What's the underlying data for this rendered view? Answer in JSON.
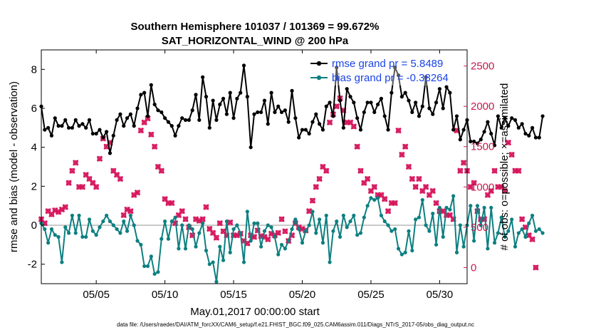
{
  "colors": {
    "rmse": "#000000",
    "bias": "#0e7f80",
    "obs": "#d6155c",
    "legend_text": "#1a44e6",
    "zero_line": "#b9b9b9",
    "right_axis": "#c11a4d"
  },
  "chart_data": {
    "type": "line",
    "title": "Southern Hemisphere 101037 / 101369 = 99.672%",
    "subtitle": "SAT_HORIZONTAL_WIND @ 200 hPa",
    "xlabel": "May.01,2017 00:00:00 start",
    "ylabel_left": "rmse and bias (model - observation)",
    "ylabel_right": "# of obs: o=possible; ×=assimilated",
    "footnote": "data file: /Users/raeder/DAI/ATM_forcXX/CAM6_setup/f.e21.FHIST_BGC.f09_025.CAM6assim.011/Diags_NTrS_2017-05/obs_diag_output.nc",
    "xlim": [
      1,
      32
    ],
    "ylim_left": [
      -3,
      9
    ],
    "ylim_right": [
      -200,
      2700
    ],
    "x_ticks": [
      5,
      10,
      15,
      20,
      25,
      30
    ],
    "x_tick_labels": [
      "05/05",
      "05/10",
      "05/15",
      "05/20",
      "05/25",
      "05/30"
    ],
    "y_ticks_left": [
      "-2",
      "0",
      "2",
      "4",
      "6",
      "8"
    ],
    "y_ticks_right": [
      "0",
      "500",
      "1000",
      "1500",
      "2000",
      "2500"
    ],
    "legend_position": "top-right",
    "legend": [
      "rmse grand pr = 5.8489",
      "bias grand pr = -0.38264"
    ],
    "t0": 1,
    "dt": 0.25,
    "series": [
      {
        "name": "rmse grand pr = 5.8489",
        "axis": "left",
        "values": [
          6.1,
          4.9,
          5.0,
          4.6,
          5.5,
          5.1,
          5.1,
          5.4,
          5.0,
          5.0,
          5.4,
          5.1,
          5.2,
          5.0,
          5.4,
          4.7,
          4.7,
          4.9,
          4.5,
          4.8,
          3.7,
          4.6,
          5.4,
          5.7,
          5.1,
          5.5,
          5.7,
          5.1,
          6.0,
          6.7,
          6.8,
          5.6,
          7.2,
          6.2,
          5.9,
          5.8,
          5.5,
          5.3,
          5.1,
          4.6,
          5.1,
          5.5,
          5.4,
          5.4,
          5.9,
          6.7,
          5.4,
          7.6,
          6.6,
          5.0,
          6.4,
          5.4,
          6.2,
          6.5,
          5.7,
          6.8,
          5.5,
          6.5,
          6.8,
          8.2,
          6.6,
          4.0,
          5.7,
          5.8,
          5.8,
          6.4,
          5.2,
          6.8,
          5.8,
          6.1,
          5.8,
          5.9,
          5.3,
          6.9,
          5.5,
          4.5,
          4.9,
          4.9,
          4.7,
          5.3,
          5.7,
          5.2,
          4.9,
          6.1,
          6.3,
          5.6,
          8.1,
          6.4,
          5.0,
          7.0,
          6.6,
          6.3,
          5.5,
          4.9,
          5.8,
          6.3,
          6.3,
          5.8,
          6.2,
          6.5,
          5.6,
          4.9,
          6.8,
          8.1,
          7.7,
          6.6,
          6.8,
          6.4,
          5.8,
          6.3,
          5.6,
          6.1,
          7.6,
          6.0,
          5.7,
          6.3,
          7.0,
          6.0,
          7.1,
          6.8,
          4.9,
          5.6,
          4.4,
          4.9,
          5.4,
          4.3,
          4.3,
          4.2,
          4.4,
          4.8,
          5.3,
          4.7,
          4.1,
          5.6,
          5.0,
          5.5,
          5.1,
          5.5,
          5.4,
          5.0,
          5.2,
          4.7,
          4.6,
          5.0,
          4.5,
          4.5,
          5.6
        ]
      },
      {
        "name": "bias grand pr = -0.38264",
        "axis": "left",
        "values": [
          0.1,
          -0.2,
          -0.9,
          -0.2,
          -0.5,
          -0.6,
          -1.9,
          -0.1,
          -0.4,
          0.5,
          -0.4,
          0.5,
          -0.6,
          -0.6,
          0.3,
          -0.3,
          -0.5,
          -0.1,
          0.2,
          0.5,
          0.2,
          0.0,
          -0.2,
          -0.4,
          0.2,
          -0.3,
          0.5,
          0.0,
          -0.8,
          -1.0,
          -2.1,
          -2.1,
          -1.6,
          -2.5,
          -2.4,
          -0.7,
          0.2,
          -0.7,
          0.2,
          0.4,
          -1.2,
          0.0,
          -1.2,
          0.0,
          -0.2,
          -1.1,
          -0.4,
          0.1,
          -1.3,
          -2.0,
          -1.9,
          -2.9,
          -1.1,
          -1.8,
          0.2,
          -1.4,
          -0.2,
          0.0,
          -0.4,
          -1.9,
          0.7,
          -0.8,
          0.1,
          0.1,
          -1.1,
          -0.3,
          0.0,
          -0.1,
          -0.6,
          -1.5,
          -1.0,
          -1.2,
          -0.8,
          -0.2,
          0.3,
          -0.2,
          -0.9,
          -0.3,
          0.0,
          0.7,
          -0.4,
          0.3,
          -0.9,
          0.5,
          -1.9,
          -0.3,
          0.2,
          -0.6,
          0.5,
          -0.1,
          0.2,
          0.5,
          -0.5,
          -0.4,
          0.4,
          1.0,
          1.4,
          1.3,
          1.4,
          0.5,
          0.2,
          0.0,
          -0.3,
          -0.2,
          -1.2,
          -1.5,
          -1.4,
          -0.3,
          -1.3,
          0.3,
          0.4,
          1.3,
          0.0,
          -0.3,
          0.6,
          -1.0,
          0.9,
          -0.6,
          0.9,
          0.8,
          1.5,
          -1.4,
          0.0,
          -1.1,
          0.0,
          1.0,
          -0.8,
          1.0,
          0.0,
          0.9,
          -1.2,
          0.9,
          -0.9,
          -0.4,
          0.4,
          -0.6,
          -0.3,
          0.3,
          -1.1,
          -0.4,
          -0.2,
          -0.6,
          0.1,
          0.5,
          -0.3,
          -0.2,
          -0.4
        ]
      },
      {
        "name": "obs_possible",
        "axis": "right",
        "values": [
          600,
          550,
          700,
          660,
          710,
          690,
          720,
          750,
          1050,
          1200,
          1300,
          1000,
          1000,
          1150,
          1100,
          1050,
          1000,
          1350,
          1600,
          1500,
          1550,
          1200,
          1150,
          1100,
          650,
          720,
          700,
          900,
          930,
          1700,
          1800,
          1850,
          1650,
          1500,
          1250,
          1200,
          850,
          800,
          800,
          550,
          650,
          700,
          600,
          500,
          400,
          600,
          580,
          600,
          750,
          480,
          430,
          370,
          550,
          450,
          400,
          560,
          400,
          400,
          420,
          330,
          300,
          400,
          380,
          460,
          390,
          380,
          350,
          420,
          400,
          430,
          600,
          450,
          330,
          400,
          550,
          500,
          480,
          460,
          700,
          830,
          1000,
          1100,
          1250,
          1200,
          1800,
          1900,
          2000,
          2100,
          1950,
          1800,
          1800,
          1750,
          1500,
          1200,
          1050,
          1100,
          950,
          1000,
          900,
          900,
          850,
          700,
          800,
          800,
          1700,
          1400,
          1500,
          1250,
          1100,
          1000,
          1100,
          950,
          1000,
          900,
          950,
          800,
          700,
          700,
          650,
          650,
          600,
          1700,
          1200,
          1300,
          1200,
          1000,
          1050,
          700,
          600,
          600,
          900,
          950,
          1200,
          1000,
          1000,
          950,
          1550,
          1400,
          1200,
          1200,
          600,
          500,
          400,
          350,
          0
        ]
      },
      {
        "name": "obs_assimilated",
        "axis": "right",
        "values": [
          600,
          550,
          700,
          660,
          710,
          690,
          720,
          750,
          1050,
          1200,
          1300,
          1000,
          1000,
          1150,
          1100,
          1050,
          1000,
          1350,
          1600,
          1500,
          1550,
          1200,
          1150,
          1100,
          650,
          720,
          700,
          900,
          930,
          1700,
          1800,
          1850,
          1650,
          1500,
          1250,
          1200,
          850,
          800,
          800,
          550,
          650,
          700,
          600,
          500,
          400,
          600,
          580,
          600,
          750,
          480,
          430,
          370,
          550,
          450,
          400,
          560,
          400,
          400,
          420,
          330,
          300,
          400,
          380,
          460,
          390,
          380,
          350,
          420,
          400,
          430,
          600,
          450,
          330,
          400,
          550,
          500,
          480,
          460,
          700,
          830,
          1000,
          1100,
          1250,
          1200,
          1800,
          1900,
          2000,
          2100,
          1950,
          1800,
          1800,
          1750,
          1500,
          1200,
          1050,
          1100,
          950,
          1000,
          900,
          900,
          850,
          700,
          800,
          800,
          1700,
          1400,
          1500,
          1250,
          1100,
          1000,
          1100,
          950,
          1000,
          900,
          950,
          800,
          700,
          700,
          650,
          650,
          600,
          1700,
          1200,
          1300,
          1200,
          1000,
          1050,
          700,
          600,
          600,
          900,
          950,
          1200,
          1000,
          1000,
          950,
          1550,
          1400,
          1200,
          1200,
          600,
          500,
          400,
          350,
          0
        ]
      }
    ]
  }
}
